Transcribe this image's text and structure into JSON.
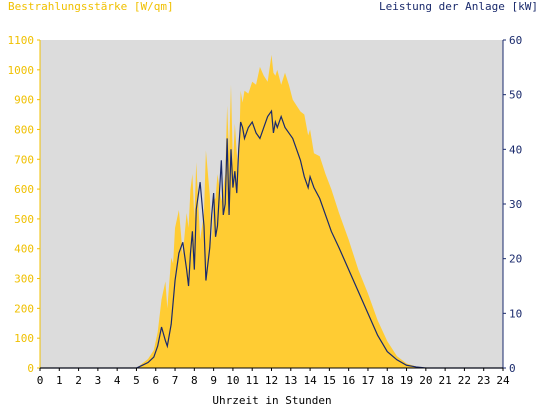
{
  "chart_data": {
    "type": "area",
    "left_axis_title": "Bestrahlungsstärke [W/qm]",
    "right_axis_title": "Leistung der Anlage [kW]",
    "xlabel": "Uhrzeit in Stunden",
    "xlim": [
      0,
      24
    ],
    "ylim_left": [
      0,
      1100
    ],
    "ylim_right": [
      0,
      60
    ],
    "x_ticks": [
      "0",
      "1",
      "2",
      "3",
      "4",
      "5",
      "6",
      "7",
      "8",
      "9",
      "10",
      "11",
      "12",
      "13",
      "14",
      "15",
      "16",
      "17",
      "18",
      "19",
      "20",
      "21",
      "22",
      "23",
      "24"
    ],
    "y_ticks_left": [
      "0",
      "100",
      "200",
      "300",
      "400",
      "500",
      "600",
      "700",
      "800",
      "900",
      "1000",
      "1100"
    ],
    "y_ticks_right": [
      "0",
      "10",
      "20",
      "30",
      "40",
      "50",
      "60"
    ],
    "grid": false,
    "colors": {
      "irradiance": "#ffcc33",
      "power": "#1a2a6c",
      "plot_bg": "#dcdcdc",
      "left_axis": "#f0c000",
      "right_axis": "#1a2a6c"
    },
    "series": [
      {
        "x": [
          5.0,
          5.3,
          5.6,
          5.9,
          6.1,
          6.3,
          6.5,
          6.6,
          6.8,
          6.9,
          7.0,
          7.2,
          7.4,
          7.6,
          7.7,
          7.8,
          7.9,
          8.0,
          8.1,
          8.3,
          8.5,
          8.6,
          8.8,
          8.9,
          9.0,
          9.1,
          9.2,
          9.4,
          9.5,
          9.6,
          9.7,
          9.8,
          9.9,
          10.0,
          10.1,
          10.2,
          10.3,
          10.4,
          10.5,
          10.6,
          10.8,
          11.0,
          11.2,
          11.4,
          11.6,
          11.8,
          12.0,
          12.1,
          12.2,
          12.3,
          12.5,
          12.7,
          12.9,
          13.1,
          13.3,
          13.5,
          13.7,
          13.9,
          14.0,
          14.2,
          14.5,
          14.8,
          15.1,
          15.5,
          16.0,
          16.5,
          17.0,
          17.5,
          18.0,
          18.5,
          19.0,
          19.5,
          20.0,
          20.3,
          24.0
        ],
        "values": [
          0,
          15,
          30,
          60,
          120,
          230,
          290,
          200,
          370,
          350,
          470,
          530,
          380,
          520,
          470,
          600,
          650,
          500,
          690,
          430,
          520,
          730,
          580,
          420,
          560,
          570,
          650,
          560,
          600,
          650,
          880,
          720,
          950,
          680,
          820,
          720,
          660,
          930,
          890,
          930,
          920,
          960,
          950,
          1010,
          980,
          960,
          1050,
          990,
          980,
          1000,
          950,
          990,
          950,
          900,
          880,
          860,
          850,
          780,
          800,
          720,
          710,
          650,
          600,
          520,
          430,
          330,
          250,
          160,
          90,
          40,
          15,
          5,
          0,
          0,
          0
        ]
      },
      {
        "x": [
          5.0,
          5.3,
          5.6,
          5.9,
          6.1,
          6.3,
          6.5,
          6.6,
          6.8,
          6.9,
          7.0,
          7.2,
          7.4,
          7.6,
          7.7,
          7.8,
          7.9,
          8.0,
          8.1,
          8.3,
          8.5,
          8.6,
          8.8,
          8.9,
          9.0,
          9.1,
          9.2,
          9.4,
          9.5,
          9.6,
          9.7,
          9.8,
          9.9,
          10.0,
          10.1,
          10.2,
          10.3,
          10.4,
          10.5,
          10.6,
          10.8,
          11.0,
          11.2,
          11.4,
          11.6,
          11.8,
          12.0,
          12.1,
          12.2,
          12.3,
          12.5,
          12.7,
          12.9,
          13.1,
          13.3,
          13.5,
          13.7,
          13.9,
          14.0,
          14.2,
          14.5,
          14.8,
          15.1,
          15.5,
          16.0,
          16.5,
          17.0,
          17.5,
          18.0,
          18.5,
          19.0,
          19.5,
          20.0,
          20.3,
          24.0
        ],
        "values": [
          0,
          0.5,
          1.0,
          2.0,
          4.0,
          7.5,
          5.0,
          4.0,
          8.0,
          12.0,
          16.0,
          21.0,
          23.0,
          18.0,
          15.0,
          21.0,
          25.0,
          18.0,
          29.0,
          34.0,
          26.0,
          16.0,
          22.0,
          28.0,
          32.0,
          24.0,
          26.0,
          38.0,
          28.0,
          30.0,
          42.0,
          28.0,
          40.0,
          33.0,
          36.0,
          32.0,
          40.0,
          45.0,
          44.0,
          42.0,
          44.0,
          45.0,
          43.0,
          42.0,
          44.0,
          46.0,
          47.0,
          43.0,
          45.0,
          44.0,
          46.0,
          44.0,
          43.0,
          42.0,
          40.0,
          38.0,
          35.0,
          33.0,
          35.0,
          33.0,
          31.0,
          28.0,
          25.0,
          22.0,
          18.0,
          14.0,
          10.0,
          6.0,
          3.0,
          1.5,
          0.5,
          0.2,
          0,
          0,
          0
        ]
      }
    ]
  }
}
